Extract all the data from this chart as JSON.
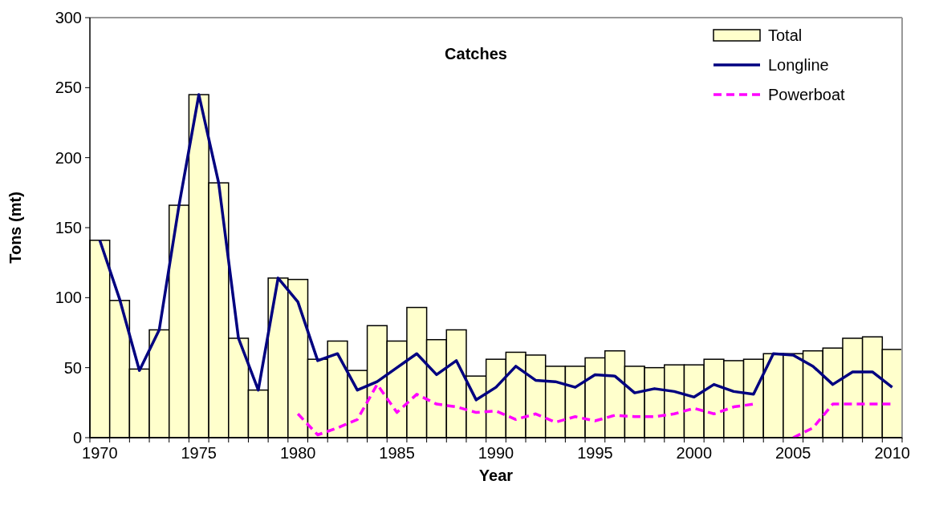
{
  "chart_data": {
    "type": "bar",
    "title": "Catches",
    "xlabel": "Year",
    "ylabel": "Tons (mt)",
    "categories": [
      "1970",
      null,
      null,
      null,
      null,
      "1975",
      null,
      null,
      null,
      null,
      "1980",
      null,
      null,
      null,
      null,
      "1985",
      null,
      null,
      null,
      null,
      "1990",
      null,
      null,
      null,
      null,
      "1995",
      null,
      null,
      null,
      null,
      "2000",
      null,
      null,
      null,
      null,
      "2005",
      null,
      null,
      null,
      null,
      "2010"
    ],
    "series": [
      {
        "name": "Total",
        "color": "#ffffcc",
        "values": [
          141,
          98,
          49,
          77,
          166,
          245,
          182,
          71,
          34,
          114,
          113,
          56,
          69,
          48,
          80,
          69,
          93,
          70,
          77,
          44,
          56,
          61,
          59,
          51,
          51,
          57,
          62,
          51,
          50,
          52,
          52,
          56,
          55,
          56,
          60,
          60,
          62,
          64,
          71,
          72,
          63
        ]
      },
      {
        "name": "Longline",
        "type": "line",
        "color": "#000080",
        "line_style": "solid",
        "values": [
          141,
          99,
          48,
          77,
          166,
          245,
          182,
          71,
          34,
          114,
          97,
          55,
          60,
          34,
          40,
          50,
          60,
          45,
          55,
          27,
          36,
          51,
          41,
          40,
          36,
          45,
          44,
          32,
          35,
          33,
          29,
          38,
          33,
          31,
          60,
          59,
          51,
          38,
          47,
          47,
          36
        ]
      },
      {
        "name": "Powerboat",
        "type": "line",
        "color": "#ff00ff",
        "line_style": "dashed",
        "values": [
          null,
          null,
          null,
          null,
          null,
          null,
          null,
          null,
          null,
          null,
          17,
          2,
          7,
          13,
          38,
          18,
          31,
          24,
          22,
          18,
          19,
          13,
          17,
          11,
          15,
          12,
          16,
          15,
          15,
          17,
          21,
          17,
          22,
          24,
          null,
          0,
          7,
          24,
          24,
          24,
          24
        ]
      }
    ],
    "ylim": [
      0,
      300
    ],
    "yticks": [
      0,
      50,
      100,
      150,
      200,
      250,
      300
    ],
    "grid": false,
    "legend": "top right"
  }
}
